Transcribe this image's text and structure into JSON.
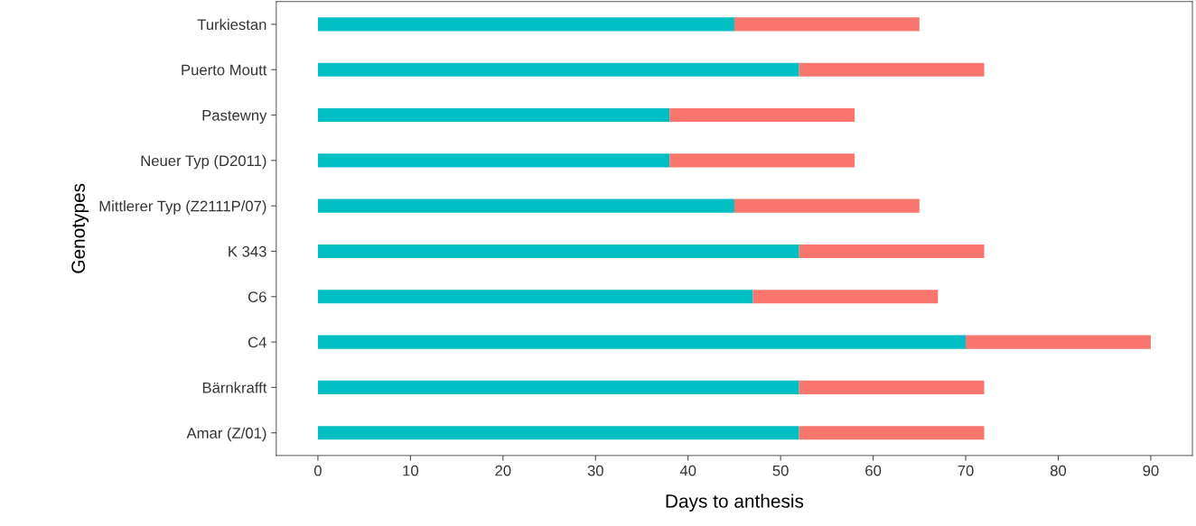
{
  "chart_data": {
    "type": "bar",
    "orientation": "horizontal",
    "stacked": true,
    "xlabel": "Days to anthesis",
    "ylabel": "Genotypes",
    "categories": [
      "Turkiestan",
      "Puerto Moutt",
      "Pastewny",
      "Neuer Typ (D2011)",
      "Mittlerer Typ (Z2111P/07)",
      "K 343",
      "C6",
      "C4",
      "Bärnkrafft",
      "Amar (Z/01)"
    ],
    "series": [
      {
        "color": "#00bfc4",
        "values": [
          45,
          52,
          38,
          38,
          45,
          52,
          47,
          70,
          52,
          52
        ]
      },
      {
        "color": "#f8766d",
        "values": [
          20,
          20,
          20,
          20,
          20,
          20,
          20,
          20,
          20,
          20
        ]
      }
    ],
    "xlim": [
      -4.5,
      94.5
    ],
    "xticks": [
      0,
      10,
      20,
      30,
      40,
      50,
      60,
      70,
      80,
      90
    ]
  }
}
